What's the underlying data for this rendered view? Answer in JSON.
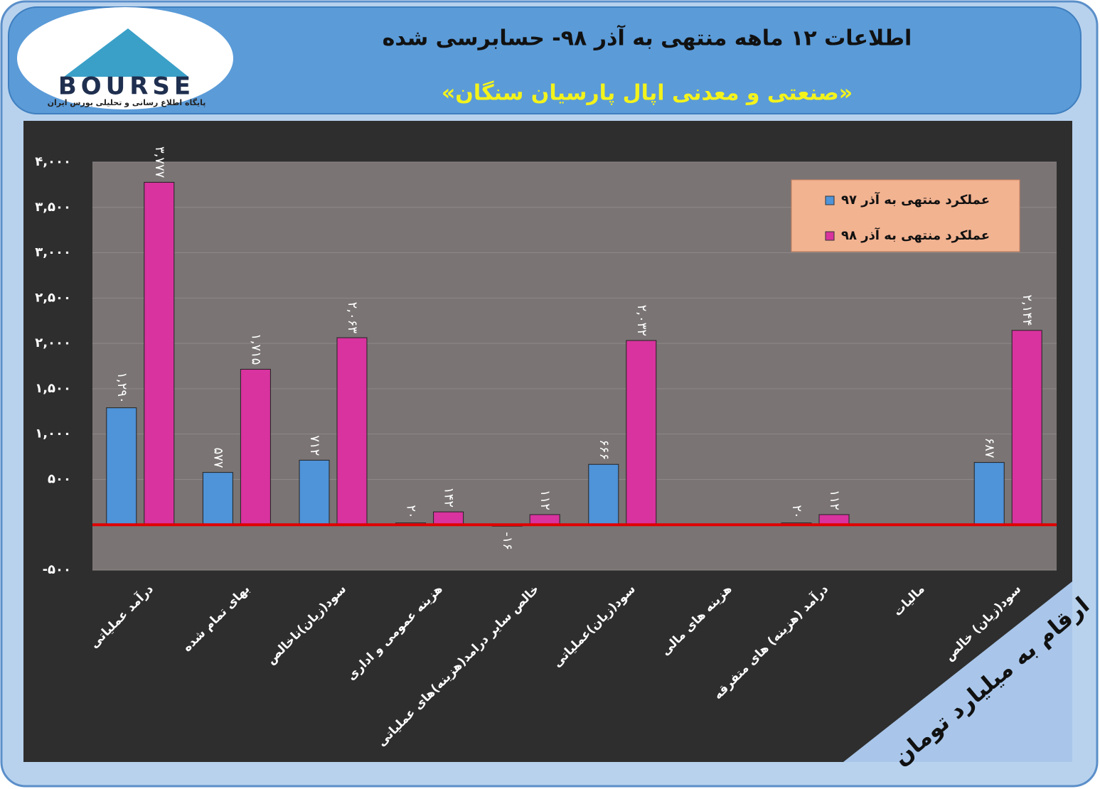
{
  "logo": {
    "text": "BOURSE",
    "caption": "پایگاه اطلاع رسانی و تحلیلی بورس ایران"
  },
  "chart_data": {
    "type": "bar",
    "title": "اطلاعات ۱۲ ماهه منتهی به آذر ۹۸- حسابرسی شده",
    "subtitle": "«صنعتی و معدنی اپال پارسیان سنگان»",
    "note": "ارقام به میلیارد تومان",
    "categories": [
      "درآمد عملیاتی",
      "بهای تمام شده",
      "سود(زیان)ناخالص",
      "هزینه عمومی و اداری",
      "خالص سایر درامد(هزینه)های عملیاتی",
      "سود(زیان)عملیاتی",
      "هزینه های مالی",
      "درآمد (هزینه) های متفرقه",
      "مالیات",
      "سود(زیان) خالص"
    ],
    "series": [
      {
        "name": "عملکرد منتهی به آذر ۹۷",
        "color": "#4f93d8",
        "values": [
          1290,
          577,
          712,
          20,
          -16,
          666,
          null,
          20,
          null,
          687
        ],
        "value_labels": [
          "۱,۲۹۰",
          "۵۷۷",
          "۷۱۲",
          "۲۰",
          "-۱۶",
          "۶۶۶",
          null,
          "۲۰",
          null,
          "۶۸۷"
        ]
      },
      {
        "name": "عملکرد منتهی به آذر ۹۸",
        "color": "#d8339e",
        "values": [
          3777,
          1715,
          2063,
          142,
          112,
          2032,
          null,
          112,
          null,
          2144
        ],
        "value_labels": [
          "۳,۷۷۷",
          "۱,۷۱۵",
          "۲,۰۶۳",
          "۱۴۲",
          "۱۱۲",
          "۲,۰۳۲",
          null,
          "۱۱۲",
          null,
          "۲,۱۴۴"
        ]
      }
    ],
    "ylim": [
      -500,
      4000
    ],
    "yticks": [
      {
        "value": -500,
        "label": "-۵۰۰"
      },
      {
        "value": 500,
        "label": "۵۰۰"
      },
      {
        "value": 1000,
        "label": "۱,۰۰۰"
      },
      {
        "value": 1500,
        "label": "۱,۵۰۰"
      },
      {
        "value": 2000,
        "label": "۲,۰۰۰"
      },
      {
        "value": 2500,
        "label": "۲,۵۰۰"
      },
      {
        "value": 3000,
        "label": "۳,۰۰۰"
      },
      {
        "value": 3500,
        "label": "۳,۵۰۰"
      },
      {
        "value": 4000,
        "label": "۴,۰۰۰"
      }
    ],
    "grid": true,
    "zero_line_color": "#e00000"
  }
}
